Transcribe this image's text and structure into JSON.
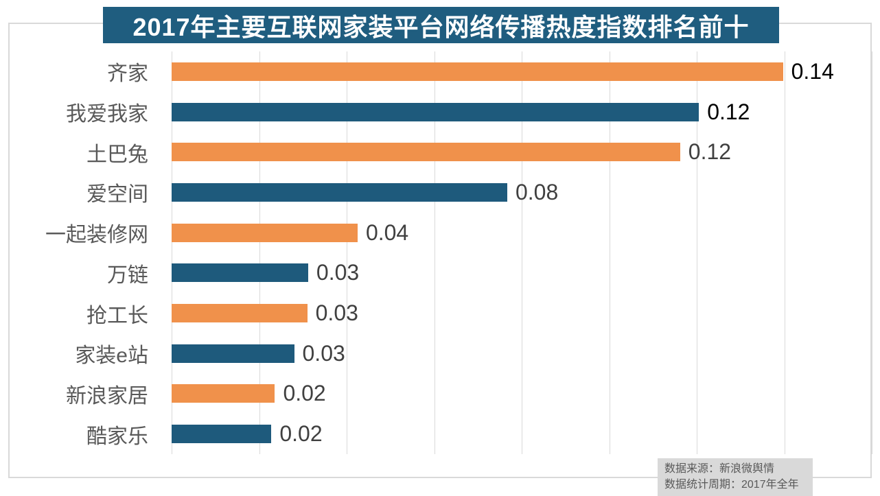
{
  "title": {
    "text": "2017年主要互联网家装平台网络传播热度指数排名前十",
    "background": "#1f5d7f",
    "text_color": "#ffffff"
  },
  "chart_data": {
    "type": "bar",
    "orientation": "horizontal",
    "title": "2017年主要互联网家装平台网络传播热度指数排名前十",
    "categories": [
      "齐家",
      "我爱我家",
      "土巴兔",
      "爱空间",
      "一起装修网",
      "万链",
      "抢工长",
      "家装e站",
      "新浪家居",
      "酷家乐"
    ],
    "values": [
      0.14,
      0.12,
      0.12,
      0.08,
      0.04,
      0.03,
      0.03,
      0.03,
      0.02,
      0.02
    ],
    "value_labels": [
      "0.14",
      "0.12",
      "0.12",
      "0.08",
      "0.04",
      "0.03",
      "0.03",
      "0.03",
      "0.02",
      "0.02"
    ],
    "values_precise": [
      0.1397,
      0.1205,
      0.1162,
      0.0767,
      0.0425,
      0.0312,
      0.031,
      0.028,
      0.0236,
      0.0228
    ],
    "xlim": [
      0,
      0.16
    ],
    "grid": {
      "vertical": true,
      "step": 0.02
    },
    "legend": "none",
    "bar_colors": [
      "#f0914b",
      "#1e5a7c"
    ],
    "value_label_colors": [
      "#000000",
      "#000000",
      "#404040",
      "#404040",
      "#404040",
      "#404040",
      "#404040",
      "#404040",
      "#404040",
      "#404040"
    ]
  },
  "source_note": {
    "line1": "数据来源：新浪微舆情",
    "line2": "数据统计周期：2017年全年",
    "background": "#d9d9d9",
    "text_color": "#595959"
  },
  "colors": {
    "gridline": "#d9d9d9",
    "frame_border": "#d9d9d9",
    "category_label": "#595959"
  }
}
